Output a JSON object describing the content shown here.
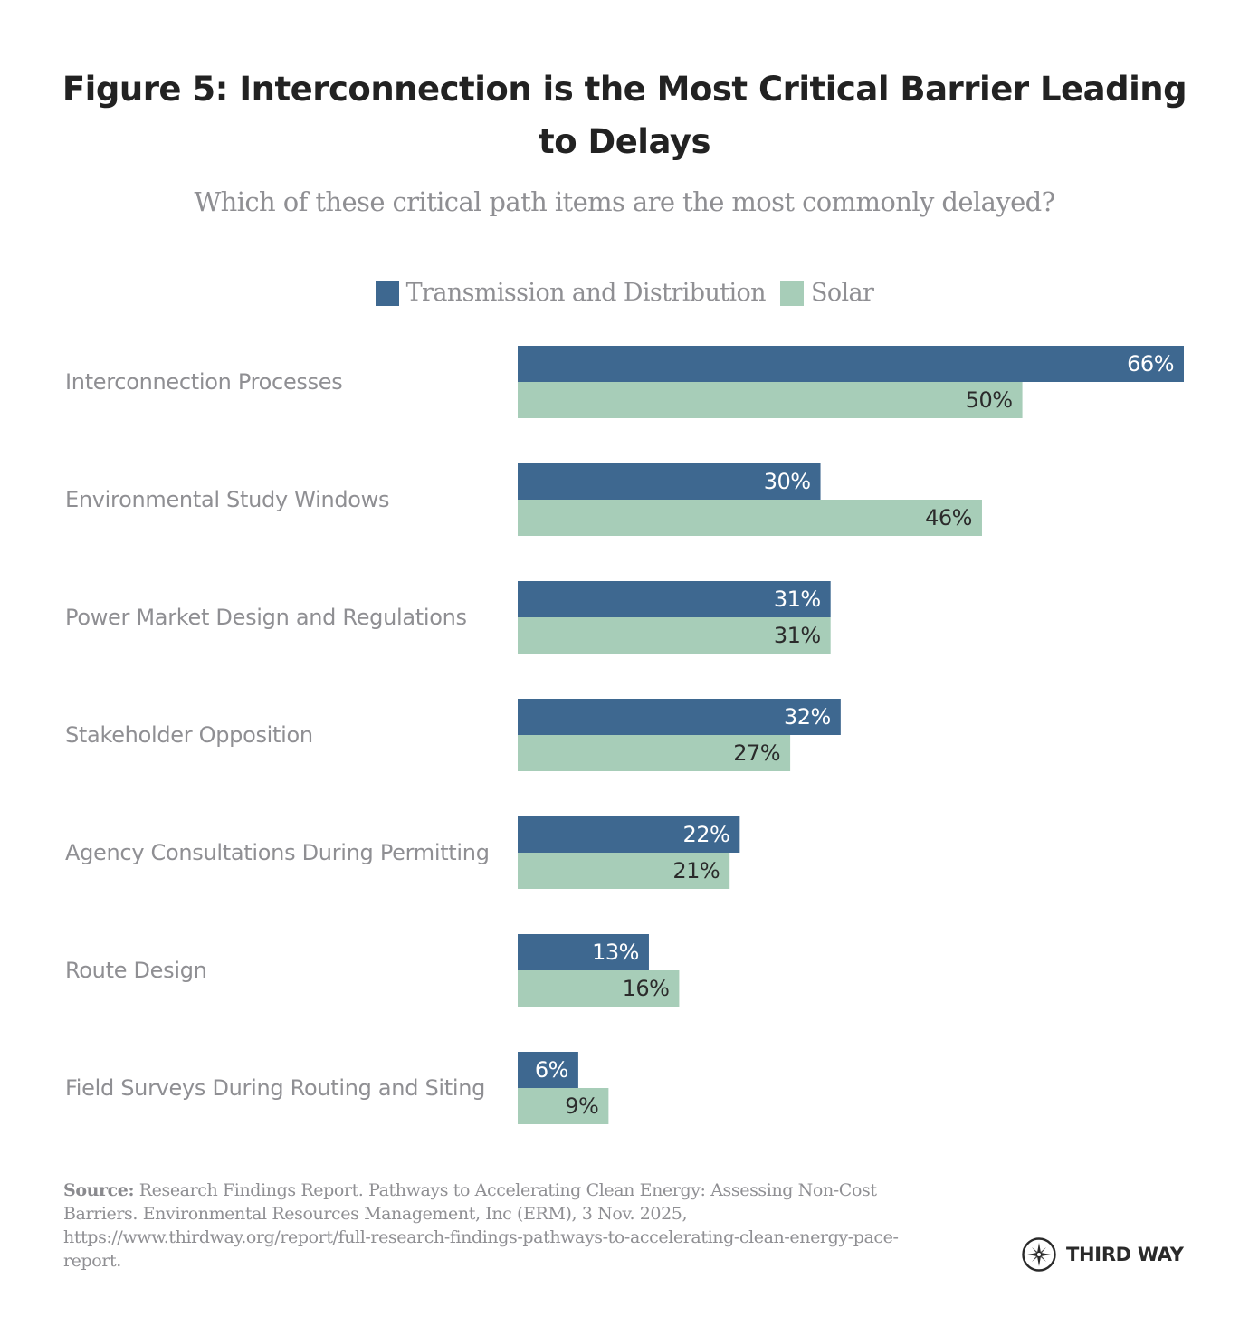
{
  "colors": {
    "transmission": "#3e6890",
    "solar": "#a7cdb8",
    "transmission_label": "#ffffff",
    "solar_label": "#2b2b2b"
  },
  "chart_data": {
    "type": "bar",
    "orientation": "horizontal",
    "title": "Figure 5: Interconnection is the Most Critical Barrier Leading to Delays",
    "subtitle": "Which of these critical path items are the most commonly delayed?",
    "xlabel": "",
    "ylabel": "",
    "xlim": [
      0,
      66
    ],
    "grid": false,
    "legend_position": "top-center",
    "value_suffix": "%",
    "categories": [
      "Interconnection Processes",
      "Environmental Study Windows",
      "Power Market Design and Regulations",
      "Stakeholder Opposition",
      "Agency Consultations During Permitting",
      "Route Design",
      "Field Surveys During Routing and Siting"
    ],
    "series": [
      {
        "name": "Transmission and Distribution",
        "values": [
          66,
          30,
          31,
          32,
          22,
          13,
          6
        ]
      },
      {
        "name": "Solar",
        "values": [
          50,
          46,
          31,
          27,
          21,
          16,
          9
        ]
      }
    ],
    "data_labels": [
      [
        "66%",
        "30%",
        "31%",
        "32%",
        "22%",
        "13%",
        "6%"
      ],
      [
        "50%",
        "46%",
        "31%",
        "27%",
        "21%",
        "16%",
        "9%"
      ]
    ]
  },
  "source": {
    "label": "Source:",
    "text": " Research Findings Report. Pathways to Accelerating Clean Energy: Assessing Non-Cost Barriers. Environmental Resources Management, Inc (ERM), 3 Nov. 2025, https://www.thirdway.org/report/full-research-findings-pathways-to-accelerating-clean-energy-pace-report."
  },
  "logo": {
    "icon": "compass-star-icon",
    "text": "THIRD WAY"
  }
}
